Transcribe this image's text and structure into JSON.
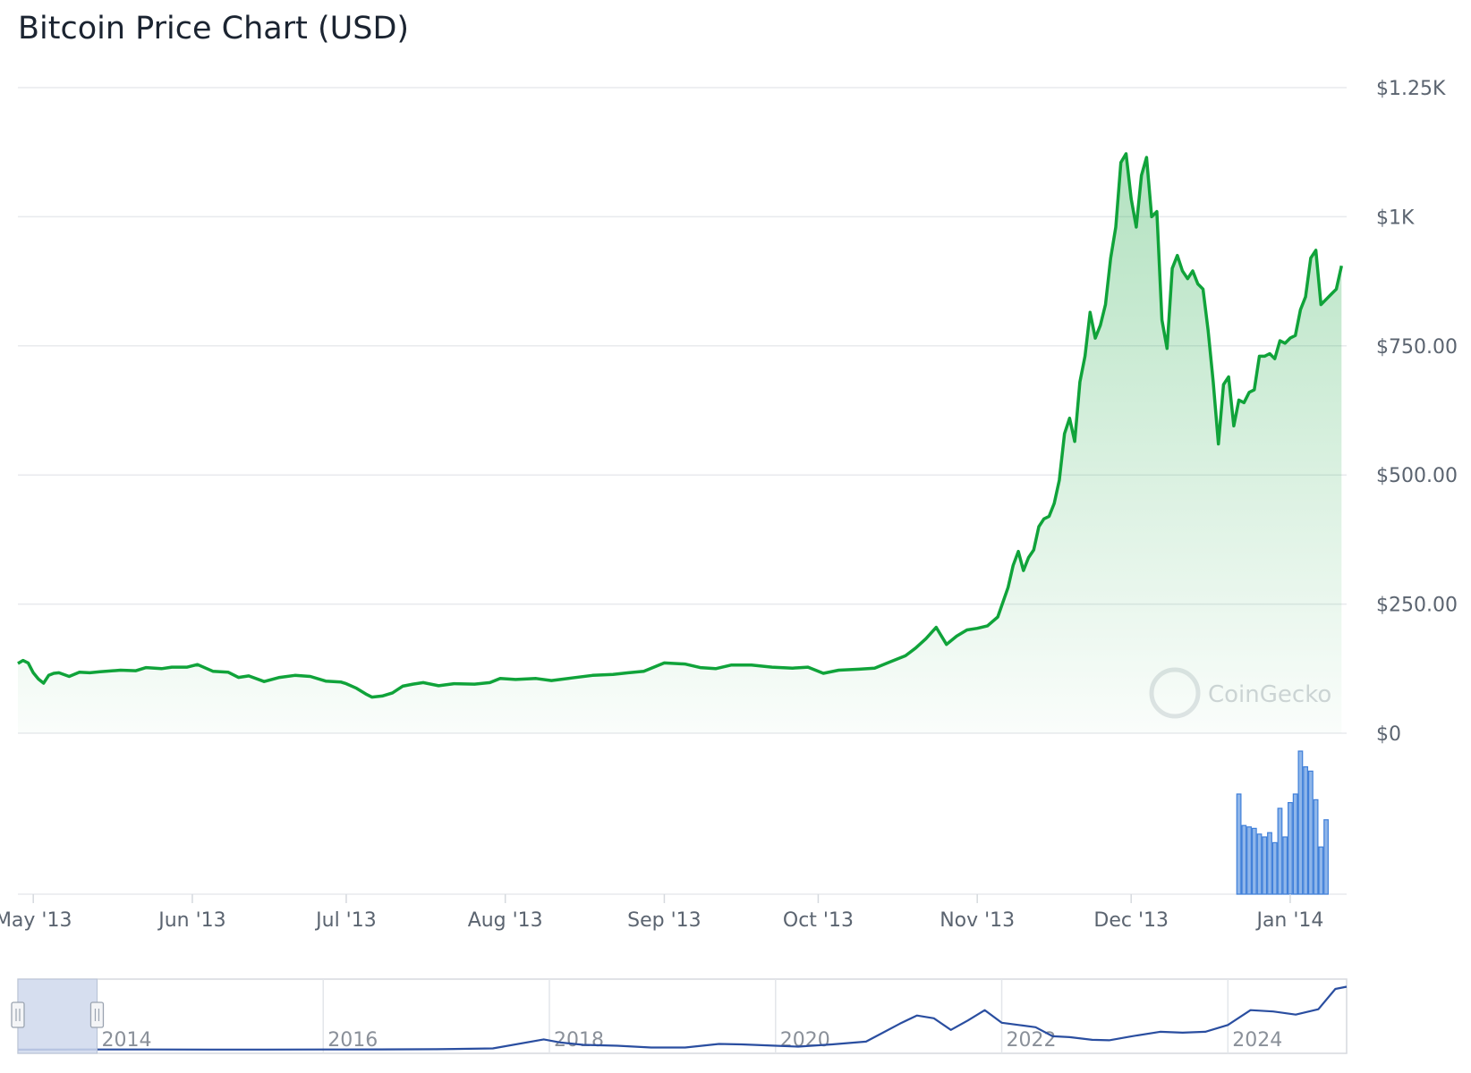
{
  "page": {
    "title": "Bitcoin Price Chart (USD)",
    "watermark": "CoinGecko"
  },
  "colors": {
    "price_line": "#10a33a",
    "price_fill": "#10a33a",
    "volume_bar": "#8fb6ea",
    "volume_stroke": "#3f7fd9",
    "navigator_line": "#2a4ea0",
    "navigator_mask": "#cfd8ec",
    "grid": "#e8eaed",
    "text": "#5b6470"
  },
  "chart_data": {
    "type": "area",
    "title": "Bitcoin Price Chart (USD)",
    "y_axis": {
      "ticks": [
        0,
        250,
        500,
        750,
        1000,
        1250
      ],
      "tick_labels": [
        "$0",
        "$250.00",
        "$500.00",
        "$750.00",
        "$1K",
        "$1.25K"
      ],
      "range": [
        0,
        1250
      ],
      "position": "right",
      "grid": true
    },
    "x_axis": {
      "range": [
        "2013-04-28",
        "2014-01-09"
      ],
      "ticks": [
        "2013-05-01",
        "2013-06-01",
        "2013-07-01",
        "2013-08-01",
        "2013-09-01",
        "2013-10-01",
        "2013-11-01",
        "2013-12-01",
        "2014-01-01"
      ],
      "tick_labels": [
        "May '13",
        "Jun '13",
        "Jul '13",
        "Aug '13",
        "Sep '13",
        "Oct '13",
        "Nov '13",
        "Dec '13",
        "Jan '14"
      ]
    },
    "series": [
      {
        "type": "area",
        "points": [
          [
            "2013-04-28",
            135
          ],
          [
            "2013-04-29",
            141
          ],
          [
            "2013-04-30",
            136
          ],
          [
            "2013-05-01",
            117
          ],
          [
            "2013-05-02",
            105
          ],
          [
            "2013-05-03",
            97
          ],
          [
            "2013-05-04",
            112
          ],
          [
            "2013-05-05",
            116
          ],
          [
            "2013-05-06",
            117
          ],
          [
            "2013-05-08",
            110
          ],
          [
            "2013-05-10",
            118
          ],
          [
            "2013-05-12",
            117
          ],
          [
            "2013-05-14",
            119
          ],
          [
            "2013-05-18",
            122
          ],
          [
            "2013-05-21",
            121
          ],
          [
            "2013-05-23",
            127
          ],
          [
            "2013-05-26",
            125
          ],
          [
            "2013-05-28",
            128
          ],
          [
            "2013-05-31",
            128
          ],
          [
            "2013-06-02",
            133
          ],
          [
            "2013-06-05",
            120
          ],
          [
            "2013-06-08",
            118
          ],
          [
            "2013-06-10",
            108
          ],
          [
            "2013-06-12",
            111
          ],
          [
            "2013-06-15",
            100
          ],
          [
            "2013-06-18",
            108
          ],
          [
            "2013-06-21",
            112
          ],
          [
            "2013-06-24",
            110
          ],
          [
            "2013-06-27",
            101
          ],
          [
            "2013-06-30",
            99
          ],
          [
            "2013-07-01",
            96
          ],
          [
            "2013-07-03",
            87
          ],
          [
            "2013-07-05",
            75
          ],
          [
            "2013-07-06",
            70
          ],
          [
            "2013-07-08",
            72
          ],
          [
            "2013-07-10",
            78
          ],
          [
            "2013-07-12",
            91
          ],
          [
            "2013-07-14",
            95
          ],
          [
            "2013-07-16",
            98
          ],
          [
            "2013-07-19",
            92
          ],
          [
            "2013-07-22",
            96
          ],
          [
            "2013-07-26",
            95
          ],
          [
            "2013-07-29",
            98
          ],
          [
            "2013-07-31",
            106
          ],
          [
            "2013-08-03",
            104
          ],
          [
            "2013-08-07",
            106
          ],
          [
            "2013-08-10",
            102
          ],
          [
            "2013-08-14",
            107
          ],
          [
            "2013-08-18",
            112
          ],
          [
            "2013-08-22",
            114
          ],
          [
            "2013-08-25",
            117
          ],
          [
            "2013-08-28",
            120
          ],
          [
            "2013-09-01",
            136
          ],
          [
            "2013-09-05",
            134
          ],
          [
            "2013-09-08",
            127
          ],
          [
            "2013-09-11",
            125
          ],
          [
            "2013-09-14",
            132
          ],
          [
            "2013-09-18",
            132
          ],
          [
            "2013-09-22",
            128
          ],
          [
            "2013-09-26",
            126
          ],
          [
            "2013-09-29",
            128
          ],
          [
            "2013-10-02",
            116
          ],
          [
            "2013-10-05",
            122
          ],
          [
            "2013-10-09",
            124
          ],
          [
            "2013-10-12",
            126
          ],
          [
            "2013-10-15",
            138
          ],
          [
            "2013-10-18",
            150
          ],
          [
            "2013-10-20",
            165
          ],
          [
            "2013-10-22",
            183
          ],
          [
            "2013-10-24",
            205
          ],
          [
            "2013-10-26",
            172
          ],
          [
            "2013-10-28",
            188
          ],
          [
            "2013-10-30",
            200
          ],
          [
            "2013-11-01",
            203
          ],
          [
            "2013-11-03",
            208
          ],
          [
            "2013-11-05",
            225
          ],
          [
            "2013-11-07",
            282
          ],
          [
            "2013-11-08",
            325
          ],
          [
            "2013-11-09",
            352
          ],
          [
            "2013-11-10",
            315
          ],
          [
            "2013-11-11",
            340
          ],
          [
            "2013-11-12",
            355
          ],
          [
            "2013-11-13",
            400
          ],
          [
            "2013-11-14",
            415
          ],
          [
            "2013-11-15",
            420
          ],
          [
            "2013-11-16",
            445
          ],
          [
            "2013-11-17",
            490
          ],
          [
            "2013-11-18",
            580
          ],
          [
            "2013-11-19",
            610
          ],
          [
            "2013-11-20",
            565
          ],
          [
            "2013-11-21",
            680
          ],
          [
            "2013-11-22",
            730
          ],
          [
            "2013-11-23",
            815
          ],
          [
            "2013-11-24",
            765
          ],
          [
            "2013-11-25",
            790
          ],
          [
            "2013-11-26",
            830
          ],
          [
            "2013-11-27",
            920
          ],
          [
            "2013-11-28",
            980
          ],
          [
            "2013-11-29",
            1105
          ],
          [
            "2013-11-30",
            1122
          ],
          [
            "2013-12-01",
            1035
          ],
          [
            "2013-12-02",
            980
          ],
          [
            "2013-12-03",
            1080
          ],
          [
            "2013-12-04",
            1115
          ],
          [
            "2013-12-05",
            1000
          ],
          [
            "2013-12-06",
            1010
          ],
          [
            "2013-12-07",
            800
          ],
          [
            "2013-12-08",
            745
          ],
          [
            "2013-12-09",
            900
          ],
          [
            "2013-12-10",
            925
          ],
          [
            "2013-12-11",
            895
          ],
          [
            "2013-12-12",
            880
          ],
          [
            "2013-12-13",
            895
          ],
          [
            "2013-12-14",
            870
          ],
          [
            "2013-12-15",
            860
          ],
          [
            "2013-12-16",
            780
          ],
          [
            "2013-12-17",
            680
          ],
          [
            "2013-12-18",
            560
          ],
          [
            "2013-12-19",
            675
          ],
          [
            "2013-12-20",
            690
          ],
          [
            "2013-12-21",
            595
          ],
          [
            "2013-12-22",
            645
          ],
          [
            "2013-12-23",
            640
          ],
          [
            "2013-12-24",
            660
          ],
          [
            "2013-12-25",
            665
          ],
          [
            "2013-12-26",
            730
          ],
          [
            "2013-12-27",
            730
          ],
          [
            "2013-12-28",
            735
          ],
          [
            "2013-12-29",
            725
          ],
          [
            "2013-12-30",
            760
          ],
          [
            "2013-12-31",
            755
          ],
          [
            "2014-01-01",
            765
          ],
          [
            "2014-01-02",
            770
          ],
          [
            "2014-01-03",
            820
          ],
          [
            "2014-01-04",
            845
          ],
          [
            "2014-01-05",
            920
          ],
          [
            "2014-01-06",
            935
          ],
          [
            "2014-01-07",
            830
          ],
          [
            "2014-01-08",
            840
          ],
          [
            "2014-01-09",
            850
          ],
          [
            "2014-01-10",
            860
          ],
          [
            "2014-01-11",
            905
          ]
        ]
      }
    ],
    "volume": {
      "type": "bar",
      "points": [
        [
          "2013-12-22",
          0.7
        ],
        [
          "2013-12-23",
          0.48
        ],
        [
          "2013-12-24",
          0.47
        ],
        [
          "2013-12-25",
          0.46
        ],
        [
          "2013-12-26",
          0.42
        ],
        [
          "2013-12-27",
          0.4
        ],
        [
          "2013-12-28",
          0.43
        ],
        [
          "2013-12-29",
          0.36
        ],
        [
          "2013-12-30",
          0.6
        ],
        [
          "2013-12-31",
          0.4
        ],
        [
          "2014-01-01",
          0.64
        ],
        [
          "2014-01-02",
          0.7
        ],
        [
          "2014-01-03",
          1.0
        ],
        [
          "2014-01-04",
          0.89
        ],
        [
          "2014-01-05",
          0.86
        ],
        [
          "2014-01-06",
          0.66
        ],
        [
          "2014-01-07",
          0.33
        ],
        [
          "2014-01-08",
          0.52
        ]
      ]
    },
    "navigator": {
      "ticks": [
        "2014",
        "2016",
        "2018",
        "2020",
        "2022",
        "2024"
      ],
      "points": [
        [
          2013.3,
          0.002
        ],
        [
          2014.0,
          0.006
        ],
        [
          2014.5,
          0.005
        ],
        [
          2015.0,
          0.003
        ],
        [
          2015.5,
          0.003
        ],
        [
          2016.0,
          0.005
        ],
        [
          2016.5,
          0.008
        ],
        [
          2017.0,
          0.012
        ],
        [
          2017.5,
          0.03
        ],
        [
          2017.95,
          0.23
        ],
        [
          2018.1,
          0.16
        ],
        [
          2018.3,
          0.11
        ],
        [
          2018.6,
          0.09
        ],
        [
          2018.9,
          0.05
        ],
        [
          2019.2,
          0.05
        ],
        [
          2019.5,
          0.13
        ],
        [
          2019.7,
          0.12
        ],
        [
          2020.0,
          0.09
        ],
        [
          2020.2,
          0.07
        ],
        [
          2020.5,
          0.12
        ],
        [
          2020.8,
          0.18
        ],
        [
          2020.95,
          0.38
        ],
        [
          2021.1,
          0.58
        ],
        [
          2021.25,
          0.76
        ],
        [
          2021.4,
          0.7
        ],
        [
          2021.55,
          0.44
        ],
        [
          2021.7,
          0.65
        ],
        [
          2021.85,
          0.88
        ],
        [
          2022.0,
          0.6
        ],
        [
          2022.15,
          0.55
        ],
        [
          2022.3,
          0.5
        ],
        [
          2022.45,
          0.3
        ],
        [
          2022.6,
          0.28
        ],
        [
          2022.8,
          0.22
        ],
        [
          2022.95,
          0.21
        ],
        [
          2023.15,
          0.3
        ],
        [
          2023.4,
          0.4
        ],
        [
          2023.6,
          0.38
        ],
        [
          2023.8,
          0.4
        ],
        [
          2024.0,
          0.55
        ],
        [
          2024.2,
          0.88
        ],
        [
          2024.4,
          0.85
        ],
        [
          2024.6,
          0.78
        ],
        [
          2024.8,
          0.9
        ],
        [
          2024.95,
          1.35
        ],
        [
          2025.05,
          1.4
        ]
      ]
    }
  }
}
